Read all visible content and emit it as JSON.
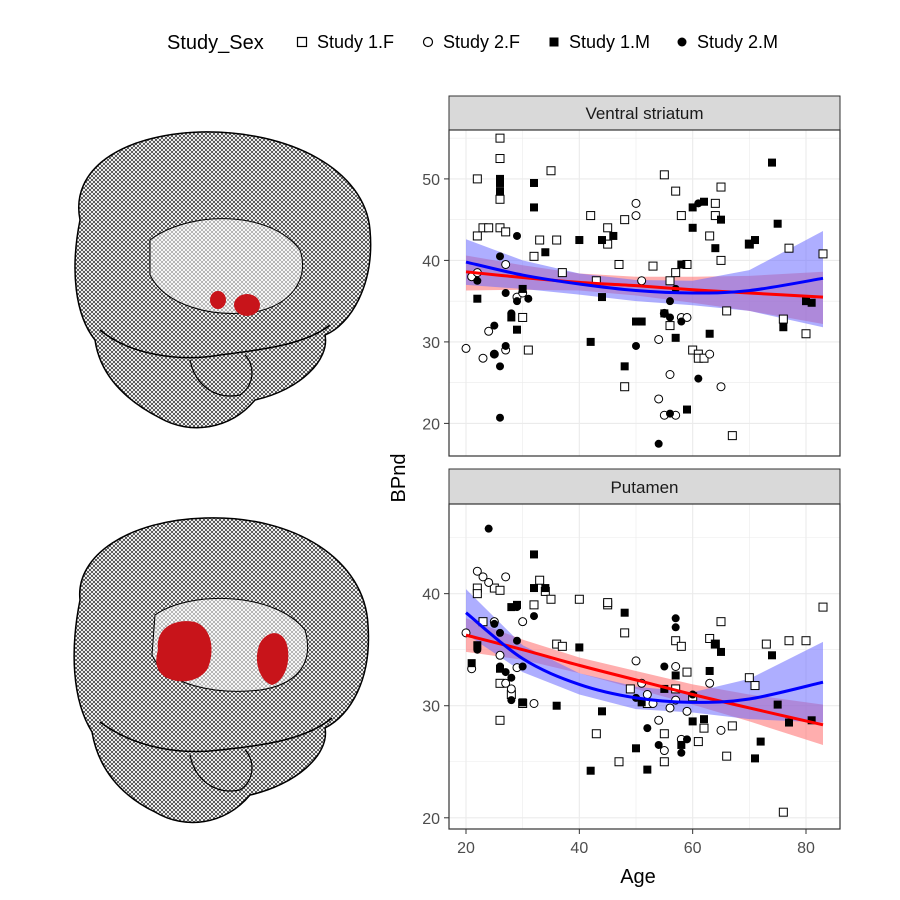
{
  "legend": {
    "title": "Study_Sex",
    "items": [
      {
        "label": "Study 1.F",
        "shape": "open-square"
      },
      {
        "label": "Study 2.F",
        "shape": "open-circle"
      },
      {
        "label": "Study 1.M",
        "shape": "filled-square"
      },
      {
        "label": "Study 2.M",
        "shape": "filled-circle"
      }
    ]
  },
  "colors": {
    "female_fit": "#ff0000",
    "male_fit": "#0000ff",
    "female_band": "#ff6b6b",
    "male_band": "#6b6bff",
    "brain_mesh": "#000000",
    "roi": "#c8141a",
    "strip_fill": "#d9d9d9",
    "grid": "#ebebeb"
  },
  "chart_data": {
    "type": "scatter",
    "xlabel": "Age",
    "ylabel": "BPnd",
    "xlim": [
      17,
      86
    ],
    "x_ticks": [
      20,
      40,
      60,
      80
    ],
    "grid": true,
    "legend_position": "top",
    "panels": [
      {
        "title": "Ventral striatum",
        "ylim": [
          16,
          56
        ],
        "y_ticks": [
          20,
          30,
          40,
          50
        ],
        "fits": [
          {
            "group": "F",
            "x": [
              20,
              30,
              40,
              50,
              60,
              70,
              83
            ],
            "y": [
              38.6,
              37.9,
              37.3,
              36.9,
              36.4,
              36.0,
              35.5
            ],
            "lower": [
              36.3,
              36.4,
              36.3,
              35.7,
              34.8,
              33.8,
              32.2
            ],
            "upper": [
              40.6,
              39.4,
              38.4,
              38.0,
              38.0,
              38.1,
              38.6
            ]
          },
          {
            "group": "M",
            "x": [
              20,
              30,
              40,
              50,
              60,
              70,
              83
            ],
            "y": [
              39.8,
              38.2,
              37.1,
              36.3,
              36.0,
              36.3,
              37.8
            ],
            "lower": [
              37.0,
              36.5,
              35.8,
              35.0,
              34.5,
              33.8,
              31.8
            ],
            "upper": [
              42.6,
              40.0,
              38.4,
              37.6,
              37.5,
              38.8,
              43.6
            ]
          }
        ],
        "points": [
          {
            "group": "1.F",
            "x": [
              22,
              22,
              23,
              24,
              26,
              26,
              26,
              26,
              27,
              30,
              31,
              32,
              33,
              35,
              36,
              37,
              42,
              43,
              45,
              45,
              47,
              48,
              48,
              53,
              55,
              56,
              56,
              57,
              57,
              58,
              59,
              60,
              61,
              61,
              62,
              63,
              64,
              64,
              65,
              65,
              66,
              67,
              70,
              76,
              77,
              80,
              83
            ],
            "y": [
              50,
              43,
              44,
              44,
              55,
              52.5,
              47.5,
              44,
              43.5,
              33,
              29,
              40.5,
              42.5,
              51,
              42.5,
              38.5,
              45.5,
              37.5,
              42,
              44,
              39.5,
              45,
              24.5,
              39.3,
              50.5,
              32,
              37.5,
              48.5,
              38.5,
              45.5,
              39.5,
              29,
              28.5,
              28,
              28,
              43,
              45.5,
              47,
              49,
              40,
              33.8,
              18.5,
              42,
              32.8,
              41.5,
              31,
              40.8
            ]
          },
          {
            "group": "2.F",
            "x": [
              20,
              21,
              22,
              23,
              24,
              25,
              27,
              27,
              29,
              30,
              50,
              50,
              51,
              54,
              54,
              55,
              55,
              56,
              57,
              58,
              59,
              63,
              65
            ],
            "y": [
              29.2,
              38,
              38.5,
              28,
              31.3,
              28.5,
              29,
              39.5,
              35.5,
              36,
              45.5,
              47,
              37.5,
              23,
              30.3,
              21,
              33.5,
              26,
              21,
              33,
              33,
              28.5,
              24.5
            ]
          },
          {
            "group": "1.M",
            "x": [
              22,
              26,
              26,
              26,
              28,
              29,
              30,
              32,
              32,
              34,
              40,
              42,
              44,
              44,
              46,
              48,
              50,
              51,
              55,
              57,
              58,
              59,
              60,
              60,
              62,
              63,
              64,
              65,
              70,
              71,
              74,
              75,
              76,
              80,
              81
            ],
            "y": [
              35.3,
              49.5,
              50,
              48.5,
              33,
              31.5,
              36.5,
              46.5,
              49.5,
              41,
              42.5,
              30,
              42.5,
              35.5,
              43,
              27,
              32.5,
              32.5,
              33.5,
              30.5,
              39.5,
              21.7,
              44,
              46.5,
              47.2,
              31,
              41.5,
              45,
              42,
              42.5,
              52,
              44.5,
              31.8,
              35,
              34.8
            ]
          },
          {
            "group": "2.M",
            "x": [
              22,
              25,
              25,
              26,
              26,
              26,
              27,
              27,
              28,
              29,
              29,
              31,
              50,
              54,
              56,
              56,
              56,
              57,
              58,
              61,
              61
            ],
            "y": [
              37.5,
              32,
              28.5,
              40.5,
              27,
              20.7,
              36,
              29.5,
              33.5,
              43,
              35,
              35.3,
              29.5,
              17.5,
              35,
              33,
              21.2,
              36.5,
              32.5,
              47,
              25.5
            ]
          }
        ]
      },
      {
        "title": "Putamen",
        "ylim": [
          19,
          48
        ],
        "y_ticks": [
          20,
          30,
          40
        ],
        "fits": [
          {
            "group": "F",
            "x": [
              20,
              30,
              40,
              50,
              60,
              70,
              83
            ],
            "y": [
              36.3,
              35.0,
              33.6,
              32.3,
              31.0,
              29.8,
              28.3
            ],
            "lower": [
              34.8,
              34.1,
              32.9,
              31.5,
              30.1,
              28.6,
              26.5
            ],
            "upper": [
              37.8,
              35.9,
              34.3,
              33.1,
              31.9,
              31.0,
              30.1
            ]
          },
          {
            "group": "M",
            "x": [
              20,
              30,
              40,
              50,
              60,
              70,
              83
            ],
            "y": [
              38.3,
              34.2,
              31.9,
              30.7,
              30.3,
              30.6,
              32.1
            ],
            "lower": [
              36.4,
              33.0,
              31.0,
              29.7,
              29.4,
              28.8,
              28.5
            ],
            "upper": [
              40.4,
              35.4,
              32.9,
              31.7,
              31.2,
              32.4,
              35.7
            ]
          }
        ],
        "points": [
          {
            "group": "1.F",
            "x": [
              22,
              22,
              23,
              25,
              26,
              26,
              26,
              28,
              30,
              32,
              33,
              34,
              35,
              36,
              37,
              40,
              43,
              45,
              45,
              47,
              48,
              49,
              52,
              55,
              55,
              57,
              57,
              58,
              59,
              60,
              61,
              62,
              63,
              64,
              65,
              66,
              67,
              70,
              71,
              73,
              76,
              77,
              80,
              83
            ],
            "y": [
              40.5,
              40,
              37.5,
              40.5,
              40.3,
              32,
              28.7,
              31,
              30.2,
              39,
              41.2,
              40.2,
              39.5,
              35.5,
              35.3,
              39.5,
              27.5,
              39,
              39.2,
              25,
              36.5,
              31.5,
              30.2,
              25,
              27.5,
              35.8,
              31.5,
              35.3,
              33,
              30.8,
              26.8,
              28,
              36,
              35.5,
              37.5,
              25.5,
              28.2,
              32.5,
              31.8,
              35.5,
              20.5,
              35.8,
              35.8,
              38.8
            ]
          },
          {
            "group": "2.F",
            "x": [
              20,
              21,
              22,
              23,
              24,
              25,
              26,
              27,
              27,
              28,
              29,
              30,
              32,
              50,
              51,
              52,
              53,
              54,
              55,
              56,
              57,
              57,
              58,
              59,
              63,
              65
            ],
            "y": [
              36.5,
              33.3,
              42,
              41.5,
              41,
              37.5,
              34.5,
              32,
              41.5,
              31.5,
              33.4,
              37.5,
              30.2,
              34,
              32,
              31,
              30.2,
              28.7,
              26,
              29.8,
              33.5,
              30.5,
              27,
              29.5,
              32,
              27.8
            ]
          },
          {
            "group": "1.M",
            "x": [
              21,
              22,
              26,
              28,
              29,
              30,
              32,
              32,
              34,
              36,
              40,
              42,
              44,
              48,
              50,
              51,
              52,
              55,
              57,
              58,
              60,
              62,
              63,
              64,
              65,
              71,
              72,
              74,
              75,
              77,
              81
            ],
            "y": [
              33.8,
              35.4,
              33.3,
              38.8,
              39,
              30.3,
              43.5,
              40.5,
              40.5,
              30,
              35.2,
              24.2,
              29.5,
              38.3,
              26.2,
              30.3,
              24.3,
              31.5,
              32.7,
              26.5,
              28.6,
              28.8,
              33.1,
              35.5,
              34.8,
              25.3,
              26.8,
              34.5,
              30.1,
              28.5,
              28.7
            ]
          },
          {
            "group": "2.M",
            "x": [
              22,
              24,
              25,
              26,
              26,
              27,
              28,
              28,
              29,
              29,
              30,
              32,
              50,
              52,
              54,
              55,
              57,
              57,
              58,
              59,
              60
            ],
            "y": [
              35,
              45.8,
              37.3,
              36.5,
              33.5,
              33,
              32.5,
              30.5,
              38.8,
              35.8,
              33.5,
              38,
              30.7,
              28,
              26.5,
              33.5,
              37.8,
              37,
              25.8,
              27,
              31
            ]
          }
        ]
      }
    ]
  }
}
